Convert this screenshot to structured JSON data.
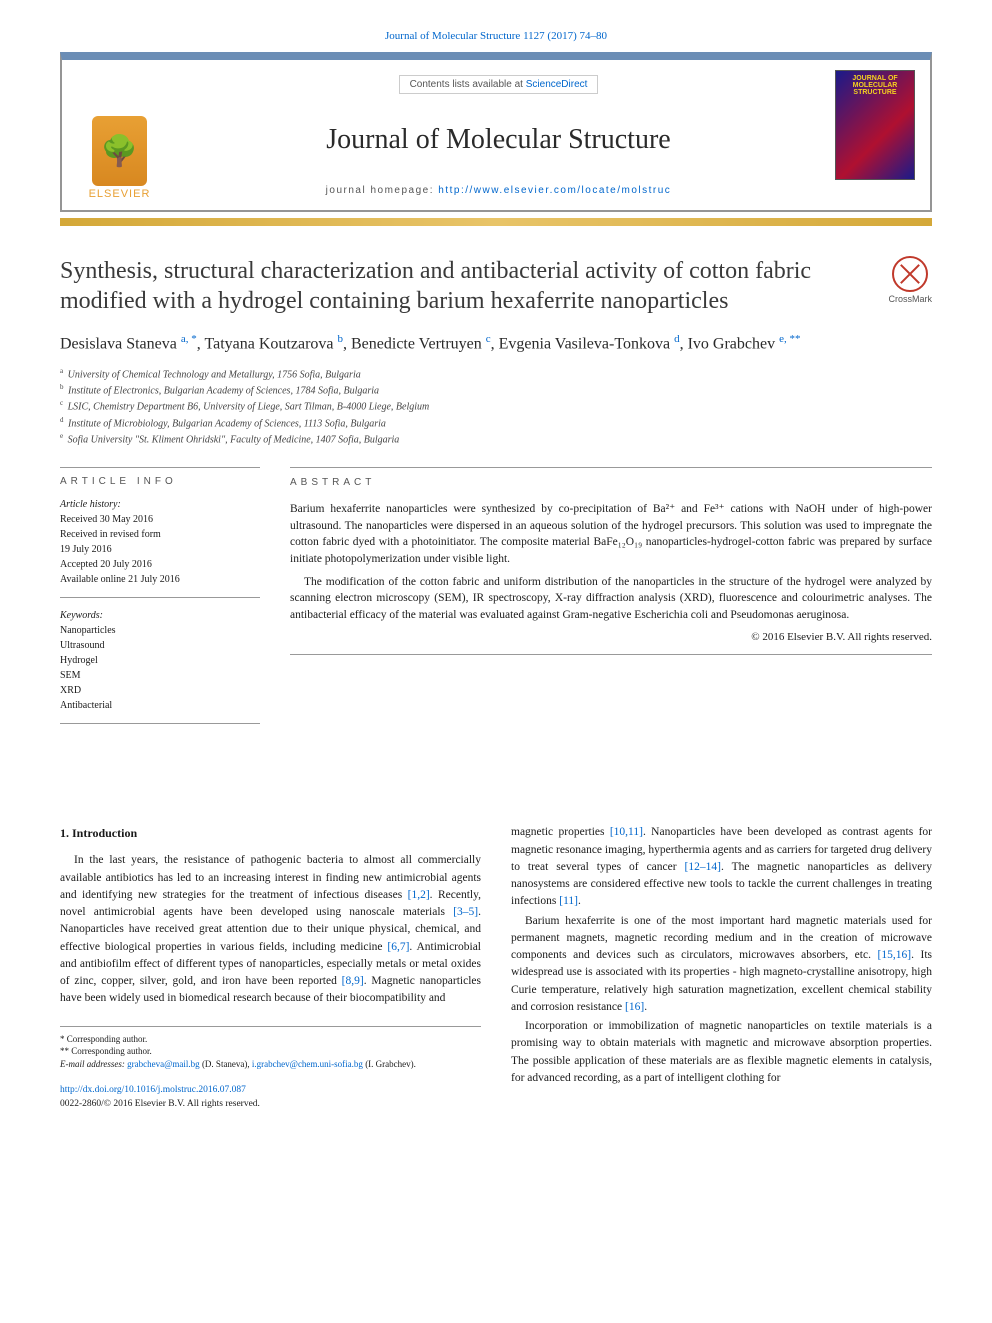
{
  "journal_ref": "Journal of Molecular Structure 1127 (2017) 74–80",
  "header": {
    "contents_prefix": "Contents lists available at ",
    "contents_link": "ScienceDirect",
    "journal_name": "Journal of Molecular Structure",
    "homepage_prefix": "journal homepage: ",
    "homepage_url": "http://www.elsevier.com/locate/molstruc",
    "elsevier": "ELSEVIER",
    "cover_text": "JOURNAL OF MOLECULAR STRUCTURE"
  },
  "crossmark": "CrossMark",
  "title": "Synthesis, structural characterization and antibacterial activity of cotton fabric modified with a hydrogel containing barium hexaferrite nanoparticles",
  "authors_html": "Desislava Staneva <sup>a, *</sup>, Tatyana Koutzarova <sup>b</sup>, Benedicte Vertruyen <sup>c</sup>, Evgenia Vasileva-Tonkova <sup>d</sup>, Ivo Grabchev <sup>e, **</sup>",
  "affiliations": [
    {
      "sup": "a",
      "text": "University of Chemical Technology and Metallurgy, 1756 Sofia, Bulgaria"
    },
    {
      "sup": "b",
      "text": "Institute of Electronics, Bulgarian Academy of Sciences, 1784 Sofia, Bulgaria"
    },
    {
      "sup": "c",
      "text": "LSIC, Chemistry Department B6, University of Liege, Sart Tilman, B-4000 Liege, Belgium"
    },
    {
      "sup": "d",
      "text": "Institute of Microbiology, Bulgarian Academy of Sciences, 1113 Sofia, Bulgaria"
    },
    {
      "sup": "e",
      "text": "Sofia University \"St. Kliment Ohridski\", Faculty of Medicine, 1407 Sofia, Bulgaria"
    }
  ],
  "info": {
    "header": "ARTICLE INFO",
    "history_label": "Article history:",
    "history": [
      "Received 30 May 2016",
      "Received in revised form",
      "19 July 2016",
      "Accepted 20 July 2016",
      "Available online 21 July 2016"
    ],
    "keywords_label": "Keywords:",
    "keywords": [
      "Nanoparticles",
      "Ultrasound",
      "Hydrogel",
      "SEM",
      "XRD",
      "Antibacterial"
    ]
  },
  "abstract": {
    "header": "ABSTRACT",
    "p1": "Barium hexaferrite nanoparticles were synthesized by co-precipitation of Ba²⁺ and Fe³⁺ cations with NaOH under of high-power ultrasound. The nanoparticles were dispersed in an aqueous solution of the hydrogel precursors. This solution was used to impregnate the cotton fabric dyed with a photoinitiator. The composite material BaFe₁₂O₁₉ nanoparticles-hydrogel-cotton fabric was prepared by surface initiate photopolymerization under visible light.",
    "p2": "The modification of the cotton fabric and uniform distribution of the nanoparticles in the structure of the hydrogel were analyzed by scanning electron microscopy (SEM), IR spectroscopy, X-ray diffraction analysis (XRD), fluorescence and colourimetric analyses. The antibacterial efficacy of the material was evaluated against Gram-negative Escherichia coli and Pseudomonas aeruginosa.",
    "copyright": "© 2016 Elsevier B.V. All rights reserved."
  },
  "body": {
    "section_heading": "1. Introduction",
    "col1_p1_a": "In the last years, the resistance of pathogenic bacteria to almost all commercially available antibiotics has led to an increasing interest in finding new antimicrobial agents and identifying new strategies for the treatment of infectious diseases ",
    "ref1": "[1,2]",
    "col1_p1_b": ". Recently, novel antimicrobial agents have been developed using nanoscale materials ",
    "ref2": "[3–5]",
    "col1_p1_c": ". Nanoparticles have received great attention due to their unique physical, chemical, and effective biological properties in various fields, including medicine ",
    "ref3": "[6,7]",
    "col1_p1_d": ". Antimicrobial and antibiofilm effect of different types of nanoparticles, especially metals or metal oxides of zinc, copper, silver, gold, and iron have been reported ",
    "ref4": "[8,9]",
    "col1_p1_e": ". Magnetic nanoparticles have been widely used in biomedical research because of their biocompatibility and",
    "col2_p1_a": "magnetic properties ",
    "ref5": "[10,11]",
    "col2_p1_b": ". Nanoparticles have been developed as contrast agents for magnetic resonance imaging, hyperthermia agents and as carriers for targeted drug delivery to treat several types of cancer ",
    "ref6": "[12–14]",
    "col2_p1_c": ". The magnetic nanoparticles as delivery nanosystems are considered effective new tools to tackle the current challenges in treating infections ",
    "ref7": "[11]",
    "col2_p1_d": ".",
    "col2_p2_a": "Barium hexaferrite is one of the most important hard magnetic materials used for permanent magnets, magnetic recording medium and in the creation of microwave components and devices such as circulators, microwaves absorbers, etc. ",
    "ref8": "[15,16]",
    "col2_p2_b": ". Its widespread use is associated with its properties - high magneto-crystalline anisotropy, high Curie temperature, relatively high saturation magnetization, excellent chemical stability and corrosion resistance ",
    "ref9": "[16]",
    "col2_p2_c": ".",
    "col2_p3": "Incorporation or immobilization of magnetic nanoparticles on textile materials is a promising way to obtain materials with magnetic and microwave absorption properties. The possible application of these materials are as flexible magnetic elements in catalysis, for advanced recording, as a part of intelligent clothing for"
  },
  "footnotes": {
    "l1": "* Corresponding author.",
    "l2": "** Corresponding author.",
    "l3_a": "E-mail addresses: ",
    "email1": "grabcheva@mail.bg",
    "l3_b": " (D. Staneva), ",
    "email2": "i.grabchev@chem.uni-sofia.bg",
    "l3_c": " (I. Grabchev)."
  },
  "bottom": {
    "doi": "http://dx.doi.org/10.1016/j.molstruc.2016.07.087",
    "issn_copy": "0022-2860/© 2016 Elsevier B.V. All rights reserved."
  }
}
